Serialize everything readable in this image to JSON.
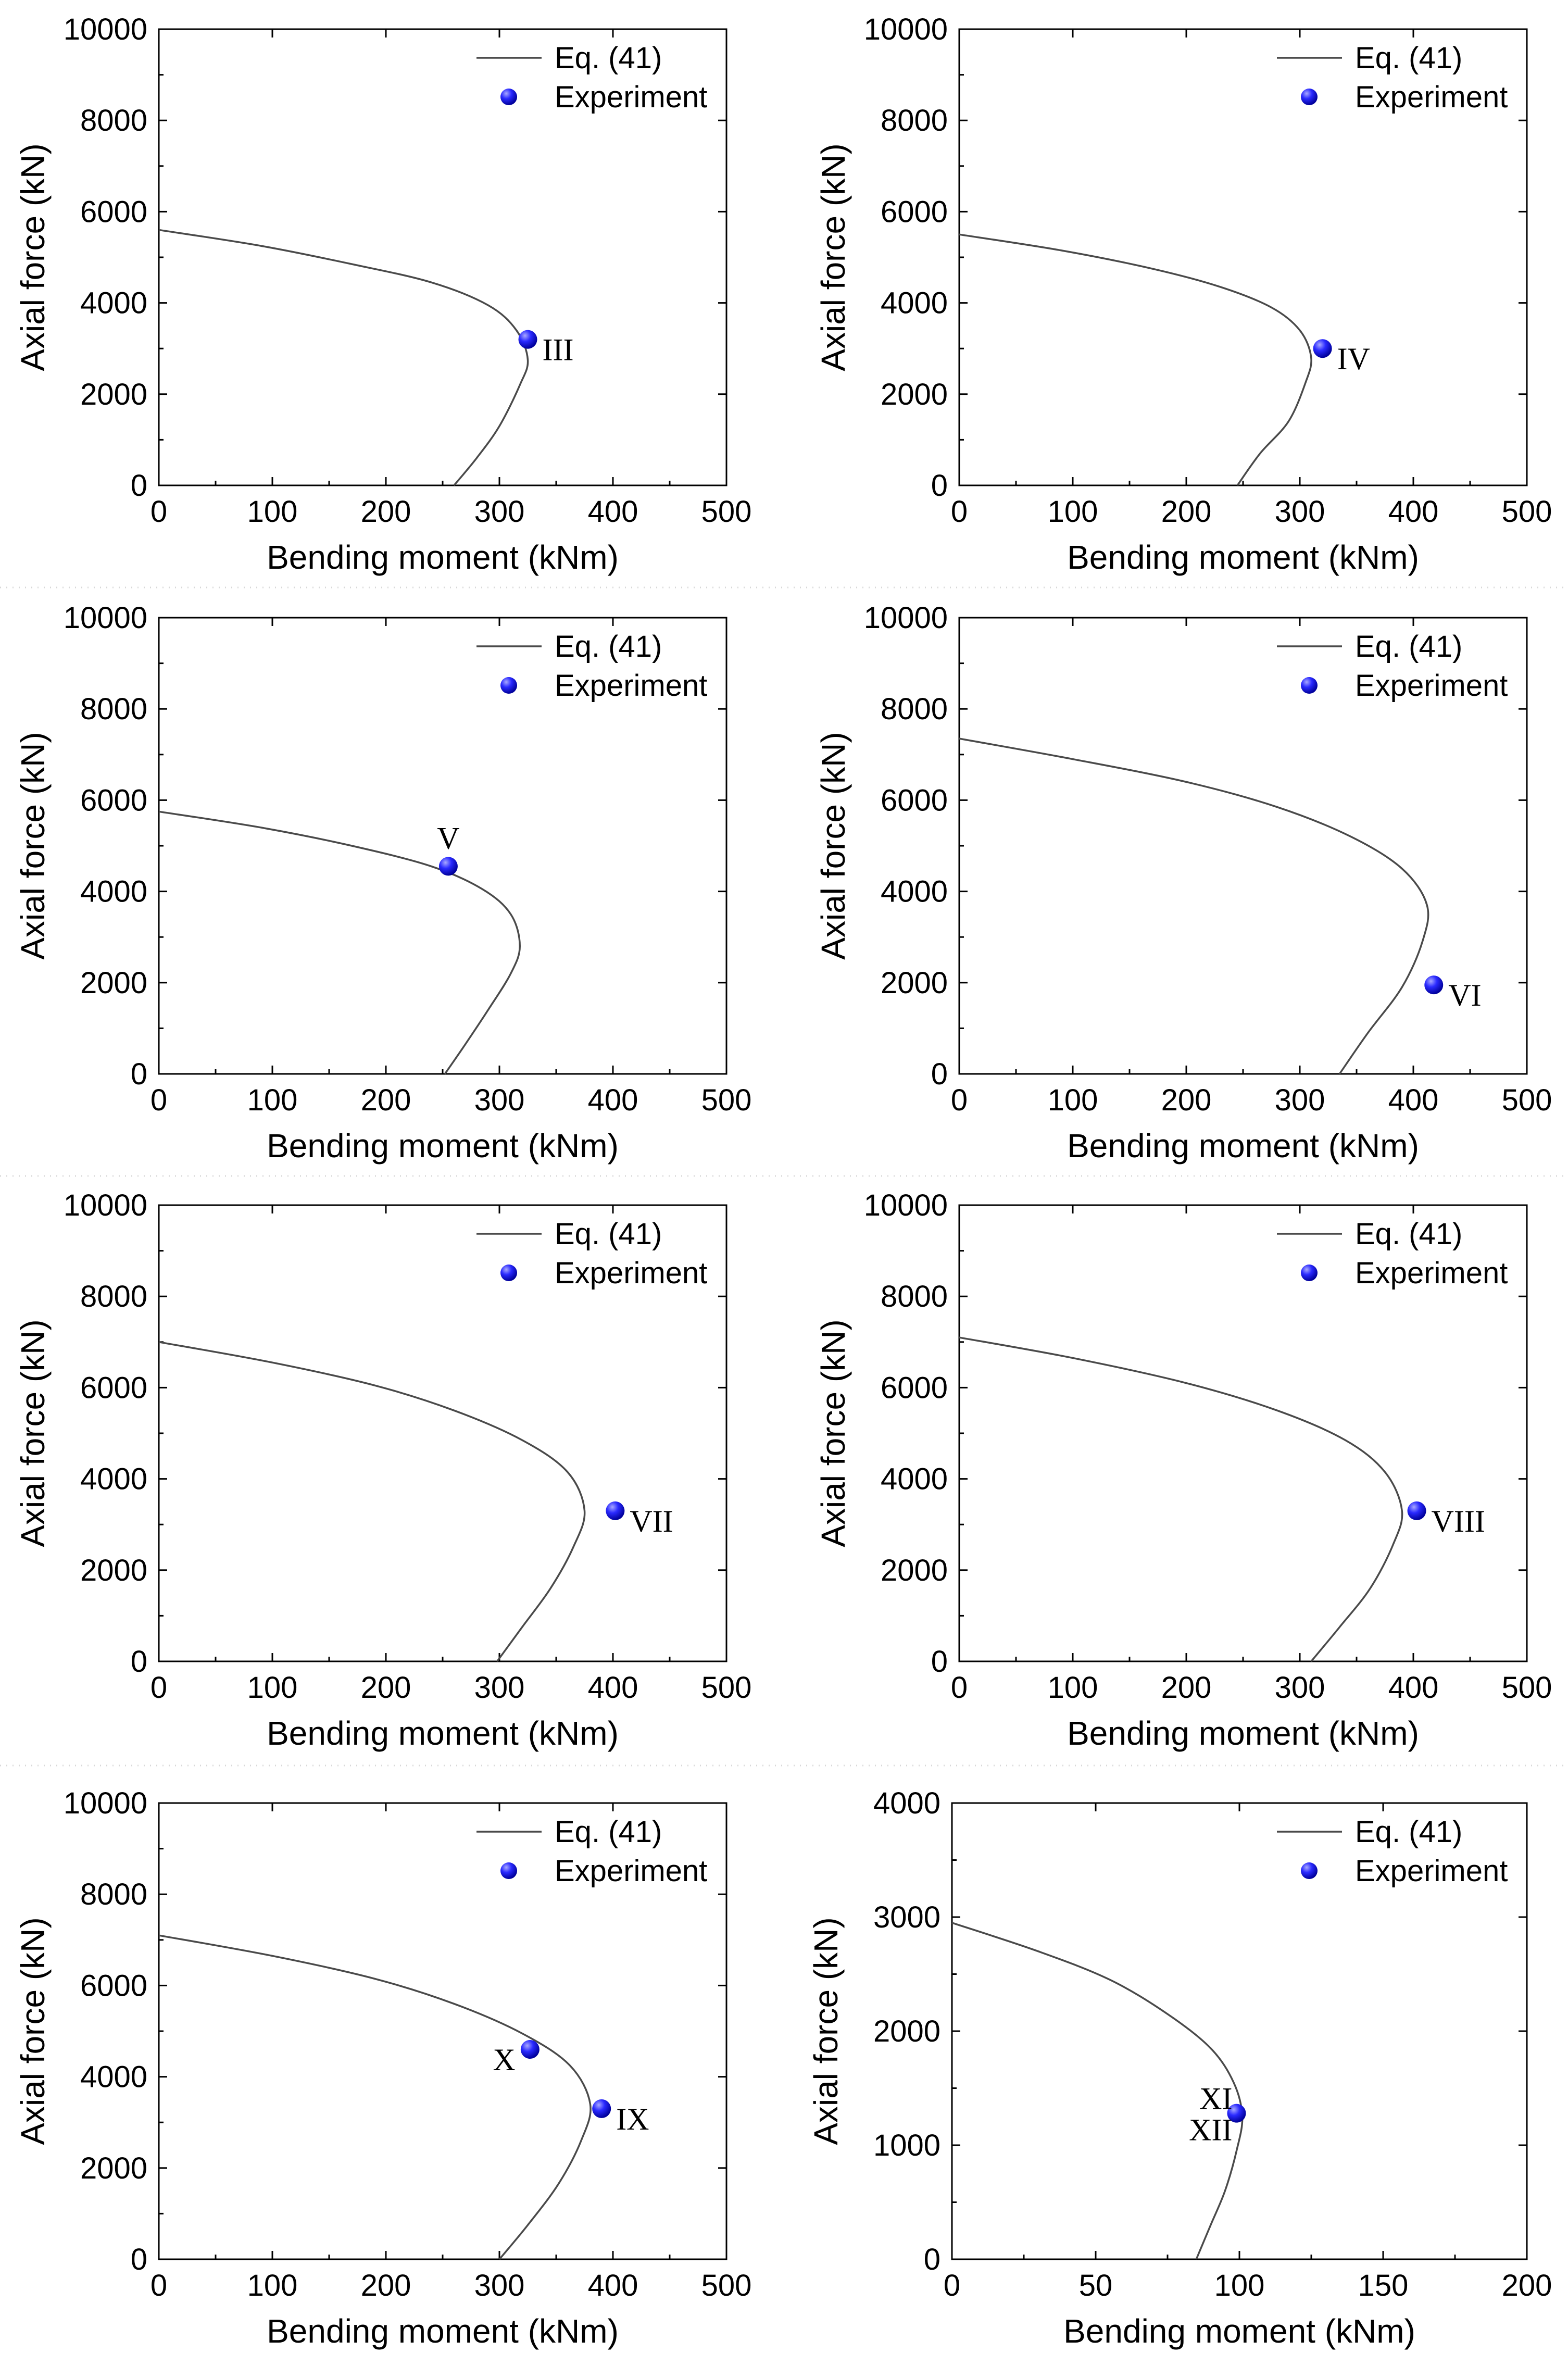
{
  "figure": {
    "legend_line_label": "Eq. (41)",
    "legend_marker_label": "Experiment",
    "marker_color": "#1a1aff",
    "curve_color": "#4a4a4a"
  },
  "chart_data": [
    {
      "type": "line",
      "xlabel": "Bending moment (kNm)",
      "ylabel": "Axial force (kN)",
      "xlim": [
        0,
        500
      ],
      "ylim": [
        0,
        10000
      ],
      "xticks": [
        "0",
        "100",
        "200",
        "300",
        "400",
        "500"
      ],
      "yticks": [
        "0",
        "2000",
        "4000",
        "6000",
        "8000",
        "10000"
      ],
      "series": [
        {
          "name": "Eq. (41)",
          "x": [
            0,
            90,
            170,
            240,
            290,
            315,
            325,
            318,
            300,
            280,
            260
          ],
          "y": [
            5600,
            5250,
            4850,
            4450,
            3950,
            3400,
            2750,
            2200,
            1300,
            600,
            0
          ]
        }
      ],
      "experiment": [
        {
          "x": 325,
          "y": 3200,
          "label": "III",
          "label_pos": "right"
        }
      ]
    },
    {
      "type": "line",
      "xlabel": "Bending moment (kNm)",
      "ylabel": "Axial force (kN)",
      "xlim": [
        0,
        500
      ],
      "ylim": [
        0,
        10000
      ],
      "xticks": [
        "0",
        "100",
        "200",
        "300",
        "400",
        "500"
      ],
      "yticks": [
        "0",
        "2000",
        "4000",
        "6000",
        "8000",
        "10000"
      ],
      "series": [
        {
          "name": "Eq. (41)",
          "x": [
            0,
            90,
            170,
            230,
            275,
            300,
            310,
            305,
            290,
            265,
            245
          ],
          "y": [
            5500,
            5150,
            4750,
            4350,
            3900,
            3400,
            2800,
            2250,
            1400,
            700,
            0
          ]
        }
      ],
      "experiment": [
        {
          "x": 320,
          "y": 3000,
          "label": "IV",
          "label_pos": "right"
        }
      ]
    },
    {
      "type": "line",
      "xlabel": "Bending moment (kNm)",
      "ylabel": "Axial force (kN)",
      "xlim": [
        0,
        500
      ],
      "ylim": [
        0,
        10000
      ],
      "xticks": [
        "0",
        "100",
        "200",
        "300",
        "400",
        "500"
      ],
      "yticks": [
        "0",
        "2000",
        "4000",
        "6000",
        "8000",
        "10000"
      ],
      "series": [
        {
          "name": "Eq. (41)",
          "x": [
            0,
            90,
            170,
            240,
            285,
            310,
            318,
            310,
            290,
            270,
            252
          ],
          "y": [
            5750,
            5400,
            5000,
            4550,
            4050,
            3500,
            2800,
            2200,
            1400,
            650,
            0
          ]
        }
      ],
      "experiment": [
        {
          "x": 255,
          "y": 4550,
          "label": "V",
          "label_pos": "top"
        }
      ]
    },
    {
      "type": "line",
      "xlabel": "Bending moment (kNm)",
      "ylabel": "Axial force (kN)",
      "xlim": [
        0,
        500
      ],
      "ylim": [
        0,
        10000
      ],
      "xticks": [
        "0",
        "100",
        "200",
        "300",
        "400",
        "500"
      ],
      "yticks": [
        "0",
        "2000",
        "4000",
        "6000",
        "8000",
        "10000"
      ],
      "series": [
        {
          "name": "Eq. (41)",
          "x": [
            0,
            100,
            200,
            280,
            345,
            390,
            412,
            408,
            390,
            360,
            335
          ],
          "y": [
            7350,
            6900,
            6400,
            5850,
            5200,
            4500,
            3700,
            2900,
            1900,
            900,
            0
          ]
        }
      ],
      "experiment": [
        {
          "x": 418,
          "y": 1950,
          "label": "VI",
          "label_pos": "right"
        }
      ]
    },
    {
      "type": "line",
      "xlabel": "Bending moment (kNm)",
      "ylabel": "Axial force (kN)",
      "xlim": [
        0,
        500
      ],
      "ylim": [
        0,
        10000
      ],
      "xticks": [
        "0",
        "100",
        "200",
        "300",
        "400",
        "500"
      ],
      "yticks": [
        "0",
        "2000",
        "4000",
        "6000",
        "8000",
        "10000"
      ],
      "series": [
        {
          "name": "Eq. (41)",
          "x": [
            0,
            100,
            190,
            260,
            320,
            360,
            375,
            365,
            345,
            320,
            298
          ],
          "y": [
            7000,
            6550,
            6050,
            5500,
            4850,
            4150,
            3300,
            2500,
            1600,
            750,
            0
          ]
        }
      ],
      "experiment": [
        {
          "x": 402,
          "y": 3300,
          "label": "VII",
          "label_pos": "right"
        }
      ]
    },
    {
      "type": "line",
      "xlabel": "Bending moment (kNm)",
      "ylabel": "Axial force (kN)",
      "xlim": [
        0,
        500
      ],
      "ylim": [
        0,
        10000
      ],
      "xticks": [
        "0",
        "100",
        "200",
        "300",
        "400",
        "500"
      ],
      "yticks": [
        "0",
        "2000",
        "4000",
        "6000",
        "8000",
        "10000"
      ],
      "series": [
        {
          "name": "Eq. (41)",
          "x": [
            0,
            100,
            200,
            280,
            340,
            375,
            390,
            382,
            362,
            335,
            310
          ],
          "y": [
            7100,
            6650,
            6100,
            5500,
            4850,
            4150,
            3300,
            2550,
            1600,
            750,
            0
          ]
        }
      ],
      "experiment": [
        {
          "x": 403,
          "y": 3300,
          "label": "VIII",
          "label_pos": "right"
        }
      ]
    },
    {
      "type": "line",
      "xlabel": "Bending moment (kNm)",
      "ylabel": "Axial force (kN)",
      "xlim": [
        0,
        500
      ],
      "ylim": [
        0,
        10000
      ],
      "xticks": [
        "0",
        "100",
        "200",
        "300",
        "400",
        "500"
      ],
      "yticks": [
        "0",
        "2000",
        "4000",
        "6000",
        "8000",
        "10000"
      ],
      "series": [
        {
          "name": "Eq. (41)",
          "x": [
            0,
            100,
            190,
            260,
            320,
            362,
            380,
            372,
            352,
            325,
            300
          ],
          "y": [
            7100,
            6650,
            6150,
            5600,
            4950,
            4250,
            3400,
            2600,
            1650,
            750,
            0
          ]
        }
      ],
      "experiment": [
        {
          "x": 390,
          "y": 3300,
          "label": "IX",
          "label_pos": "right"
        },
        {
          "x": 327,
          "y": 4600,
          "label": "X",
          "label_pos": "left"
        }
      ]
    },
    {
      "type": "line",
      "xlabel": "Bending moment (kNm)",
      "ylabel": "Axial force (kN)",
      "xlim": [
        0,
        200
      ],
      "ylim": [
        0,
        4000
      ],
      "xticks": [
        "0",
        "50",
        "100",
        "150",
        "200"
      ],
      "yticks": [
        "0",
        "1000",
        "2000",
        "3000",
        "4000"
      ],
      "series": [
        {
          "name": "Eq. (41)",
          "x": [
            0,
            30,
            55,
            75,
            90,
            98,
            101,
            99,
            95,
            90,
            85
          ],
          "y": [
            2950,
            2700,
            2450,
            2150,
            1850,
            1550,
            1250,
            950,
            600,
            300,
            0
          ]
        }
      ],
      "experiment": [
        {
          "x": 99,
          "y": 1280,
          "label": "XI",
          "label2": "XII",
          "label_pos": "left-stack"
        }
      ]
    }
  ]
}
